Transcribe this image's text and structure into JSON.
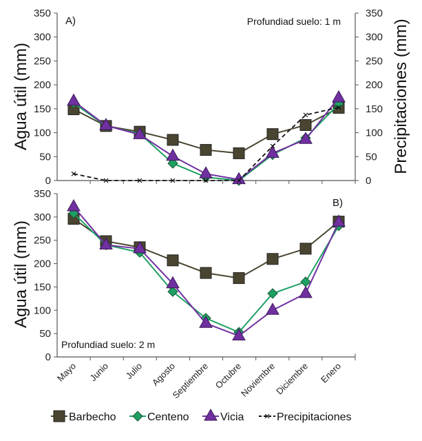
{
  "chart_data": [
    {
      "type": "line",
      "panel": "A",
      "panel_label": "A)",
      "annotation": "Profundiad suelo: 1 m",
      "annotation_position": "top-right",
      "categories": [
        "Mayo",
        "Junio",
        "Julio",
        "Agosto",
        "Septiembre",
        "Octubre",
        "Noviembre",
        "Diciembre",
        "Enero"
      ],
      "ylabel": "Agua útil (mm)",
      "y2label": "Precipitaciones (mm)",
      "ylim": [
        0,
        350
      ],
      "y2lim": [
        0,
        350
      ],
      "yticks": [
        0,
        50,
        100,
        150,
        200,
        250,
        300,
        350
      ],
      "series": [
        {
          "name": "Barbecho",
          "axis": "left",
          "values": [
            149,
            114,
            102,
            85,
            64,
            57,
            97,
            116,
            152
          ]
        },
        {
          "name": "Centeno",
          "axis": "left",
          "values": [
            162,
            114,
            98,
            36,
            7,
            0,
            54,
            89,
            160
          ]
        },
        {
          "name": "Vicia",
          "axis": "left",
          "values": [
            166,
            115,
            96,
            51,
            14,
            2,
            57,
            86,
            173
          ]
        },
        {
          "name": "Precipitaciones",
          "axis": "right",
          "values": [
            14,
            0,
            0,
            0,
            0,
            0,
            72,
            137,
            153
          ]
        }
      ]
    },
    {
      "type": "line",
      "panel": "B",
      "panel_label": "B)",
      "annotation": "Profundiad suelo: 2 m",
      "annotation_position": "bottom-left",
      "categories": [
        "Mayo",
        "Junio",
        "Julio",
        "Agosto",
        "Septiembre",
        "Octubre",
        "Noviembre",
        "Diciembre",
        "Enero"
      ],
      "ylabel": "Agua útil (mm)",
      "ylim": [
        0,
        350
      ],
      "yticks": [
        0,
        50,
        100,
        150,
        200,
        250,
        300,
        350
      ],
      "series": [
        {
          "name": "Barbecho",
          "axis": "left",
          "values": [
            296,
            248,
            235,
            207,
            180,
            169,
            210,
            232,
            290
          ]
        },
        {
          "name": "Centeno",
          "axis": "left",
          "values": [
            308,
            240,
            224,
            140,
            83,
            53,
            136,
            161,
            281
          ]
        },
        {
          "name": "Vicia",
          "axis": "left",
          "values": [
            322,
            240,
            232,
            157,
            72,
            45,
            100,
            136,
            289
          ]
        }
      ]
    }
  ],
  "legend": {
    "placement": "bottom",
    "items": [
      {
        "name": "Barbecho",
        "marker": "square",
        "color": "#4a4530",
        "line": "solid"
      },
      {
        "name": "Centeno",
        "marker": "diamond",
        "color": "#1ea063",
        "line": "solid"
      },
      {
        "name": "Vicia",
        "marker": "triangle",
        "color": "#7030a0",
        "line": "solid"
      },
      {
        "name": "Precipitaciones",
        "marker": "x",
        "color": "#111111",
        "line": "dashed"
      }
    ]
  },
  "colors": {
    "Barbecho": "#4a4530",
    "Centeno": "#1ea063",
    "Vicia": "#7030a0",
    "Precipitaciones": "#111111",
    "axis": "#555555"
  }
}
